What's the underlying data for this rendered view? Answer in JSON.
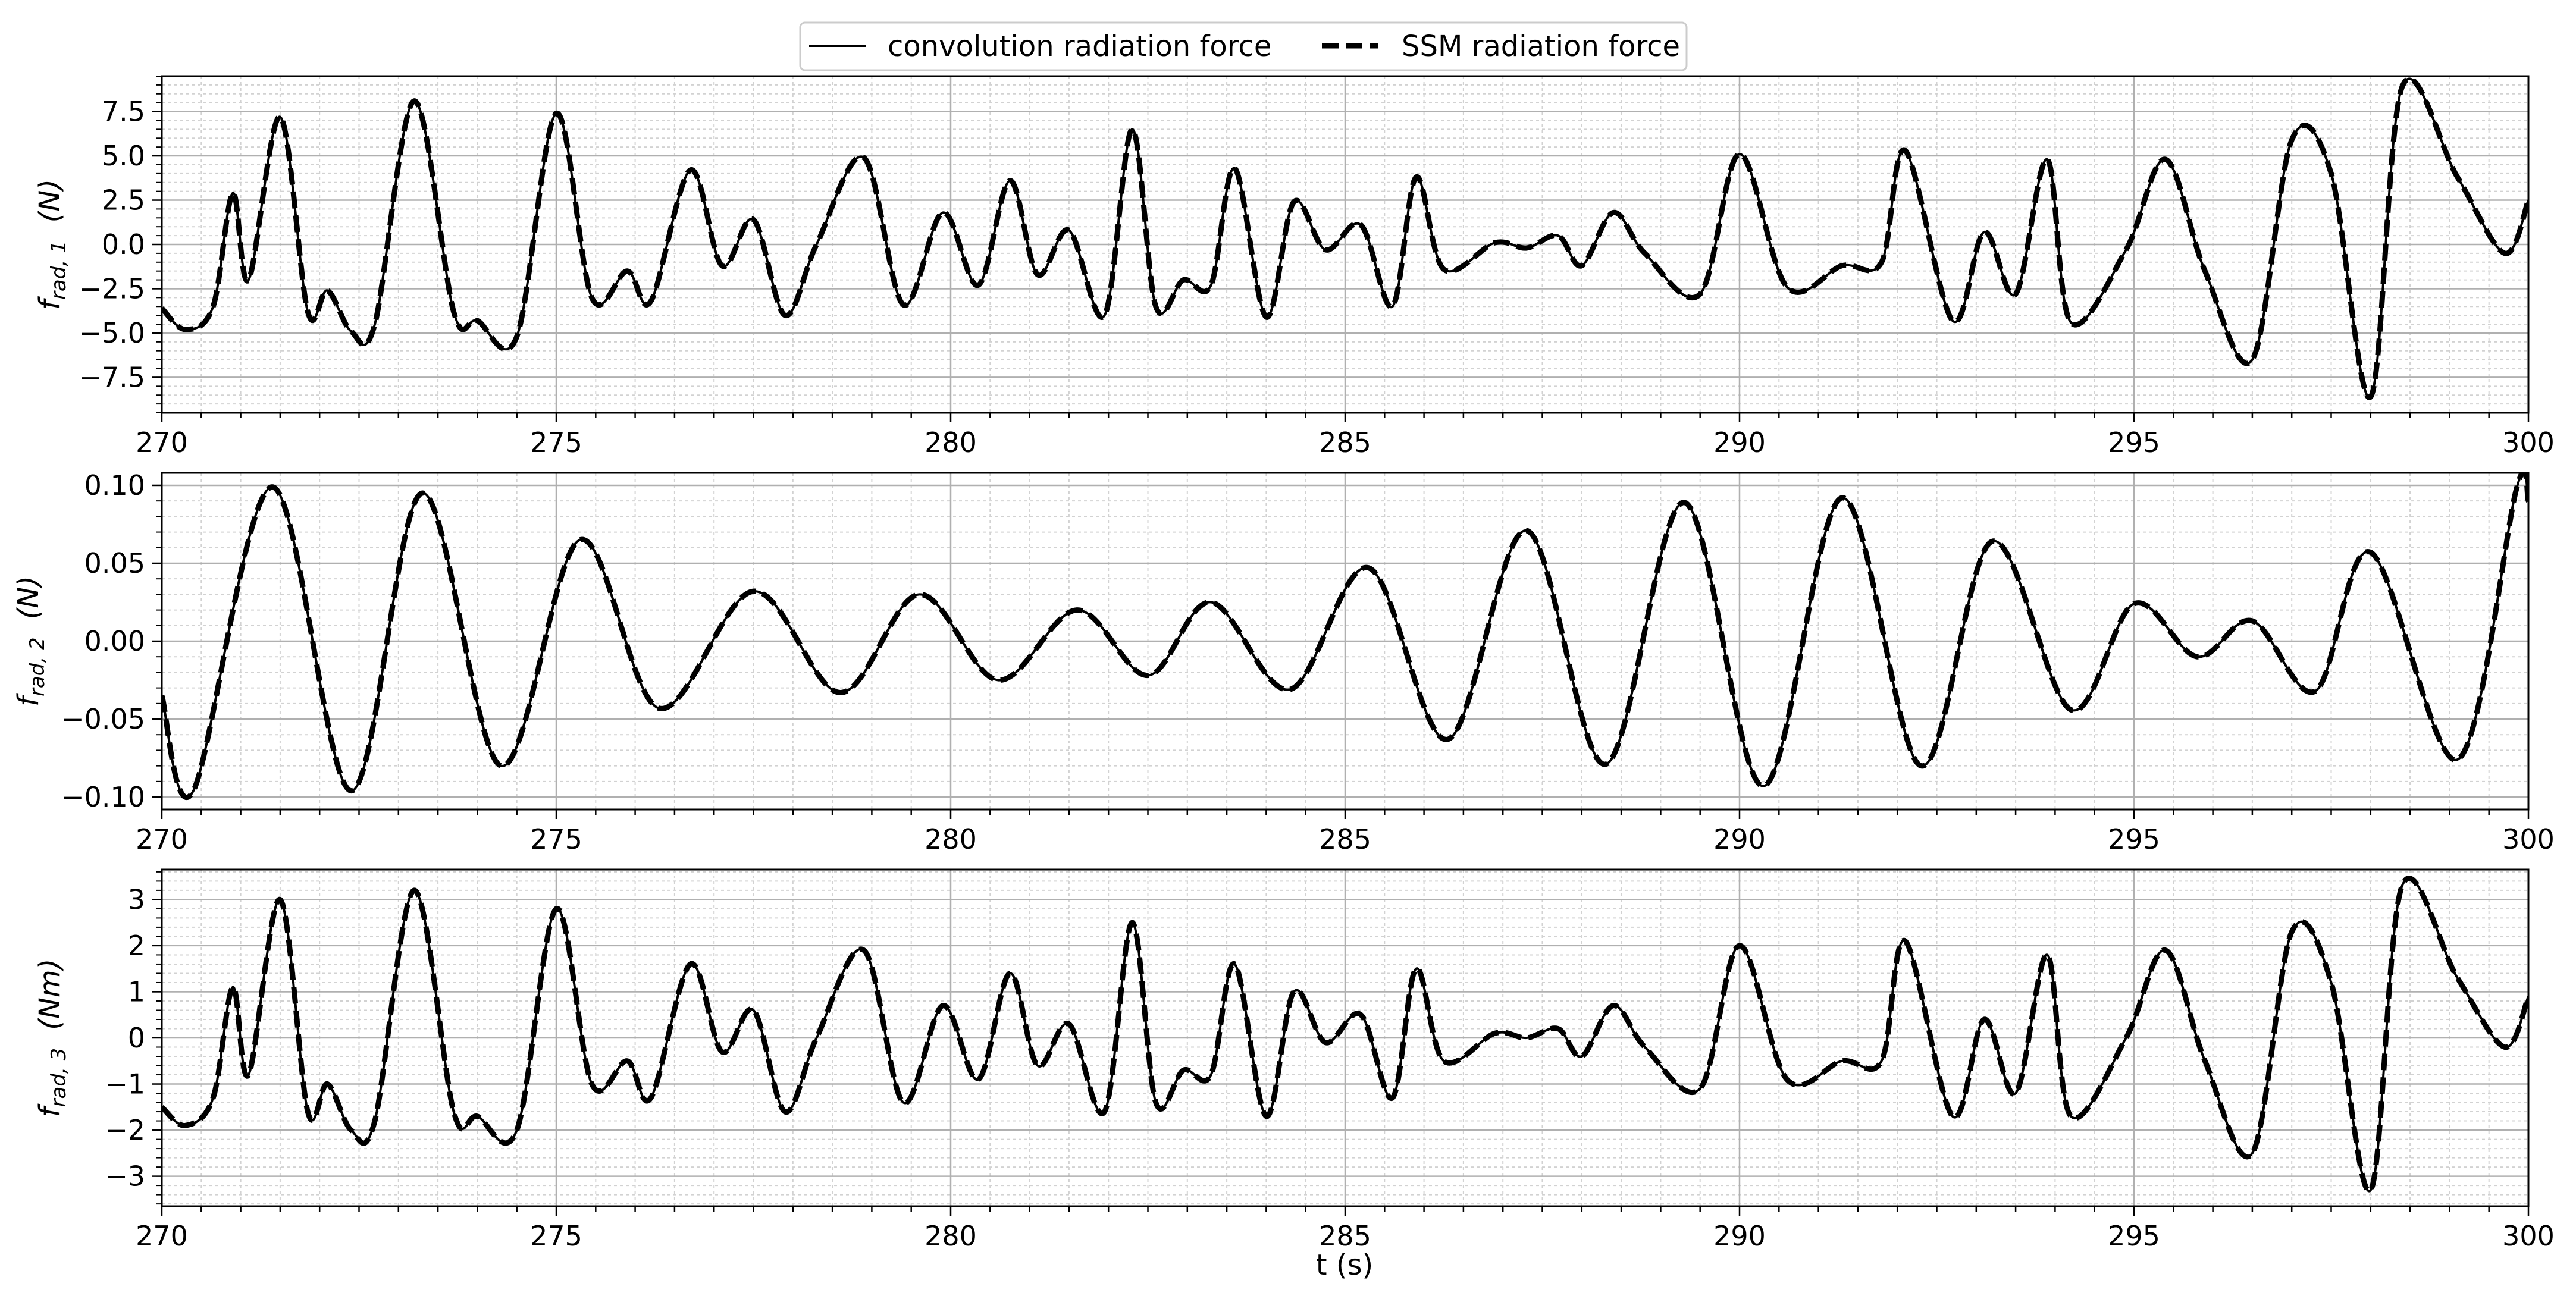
{
  "legend": {
    "entries": [
      {
        "label": "convolution radiation force",
        "style": "solid"
      },
      {
        "label": "SSM radiation force",
        "style": "dashed"
      }
    ],
    "placement": "top-center"
  },
  "chart_data": [
    {
      "type": "line",
      "title": "",
      "xlabel": "",
      "ylabel": {
        "symbol": "f",
        "subscript": "rad, 1",
        "unit": "(N)"
      },
      "xlim": [
        270,
        300
      ],
      "ylim": [
        -9.5,
        9.5
      ],
      "xticks": [
        270,
        275,
        280,
        285,
        290,
        295,
        300
      ],
      "xticklabels": [
        "270",
        "275",
        "280",
        "285",
        "290",
        "295",
        "300"
      ],
      "yticks": [
        -7.5,
        -5.0,
        -2.5,
        0.0,
        2.5,
        5.0,
        7.5
      ],
      "yticklabels": [
        "−7.5",
        "−5.0",
        "−2.5",
        "0.0",
        "2.5",
        "5.0",
        "7.5"
      ],
      "grid": true,
      "x": [
        270,
        270.3,
        270.65,
        270.9,
        271.1,
        271.5,
        271.85,
        272.1,
        272.4,
        272.7,
        273.2,
        273.7,
        274.0,
        274.5,
        275.0,
        275.45,
        275.9,
        276.2,
        276.7,
        277.1,
        277.5,
        277.9,
        278.3,
        278.9,
        279.4,
        279.9,
        280.35,
        280.75,
        281.1,
        281.5,
        281.95,
        282.3,
        282.6,
        282.95,
        283.3,
        283.6,
        284.0,
        284.35,
        284.75,
        285.2,
        285.6,
        285.9,
        286.25,
        286.9,
        287.3,
        287.7,
        288.0,
        288.4,
        288.8,
        289.5,
        290.0,
        290.6,
        291.3,
        291.8,
        292.1,
        292.7,
        293.1,
        293.5,
        293.9,
        294.2,
        294.9,
        295.4,
        295.9,
        296.5,
        297.0,
        297.5,
        298.0,
        298.4,
        299.1,
        299.7,
        300.0
      ],
      "series": [
        {
          "name": "convolution radiation force",
          "values": [
            -3.6,
            -4.8,
            -3.5,
            2.9,
            -2.0,
            7.2,
            -3.8,
            -2.6,
            -4.9,
            -4.5,
            8.1,
            -3.8,
            -4.3,
            -5.2,
            7.4,
            -3.0,
            -1.5,
            -3.2,
            4.2,
            -1.2,
            1.4,
            -4.0,
            0.0,
            4.9,
            -3.4,
            1.8,
            -2.3,
            3.6,
            -1.7,
            0.8,
            -4.0,
            6.5,
            -3.5,
            -2.0,
            -2.3,
            4.3,
            -4.1,
            2.4,
            -0.3,
            1.1,
            -3.5,
            3.8,
            -1.4,
            0.1,
            -0.2,
            0.5,
            -1.2,
            1.8,
            -0.5,
            -2.8,
            5.1,
            -2.4,
            -1.2,
            -1.0,
            5.3,
            -4.3,
            0.7,
            -2.8,
            4.8,
            -4.4,
            -0.3,
            4.8,
            -1.5,
            -6.5,
            5.9,
            4.0,
            -8.6,
            8.9,
            3.8,
            -0.5,
            2.5
          ]
        },
        {
          "name": "SSM radiation force",
          "values": [
            -3.6,
            -4.8,
            -3.5,
            2.9,
            -2.0,
            7.2,
            -3.8,
            -2.6,
            -4.9,
            -4.5,
            8.1,
            -3.8,
            -4.3,
            -5.2,
            7.4,
            -3.0,
            -1.5,
            -3.2,
            4.2,
            -1.2,
            1.4,
            -4.0,
            0.0,
            4.9,
            -3.4,
            1.8,
            -2.3,
            3.6,
            -1.7,
            0.8,
            -4.0,
            6.5,
            -3.5,
            -2.0,
            -2.3,
            4.3,
            -4.1,
            2.4,
            -0.3,
            1.1,
            -3.5,
            3.8,
            -1.4,
            0.1,
            -0.2,
            0.5,
            -1.2,
            1.8,
            -0.5,
            -2.8,
            5.1,
            -2.4,
            -1.2,
            -1.0,
            5.3,
            -4.3,
            0.7,
            -2.8,
            4.8,
            -4.4,
            -0.3,
            4.8,
            -1.5,
            -6.5,
            5.9,
            4.0,
            -8.6,
            8.9,
            3.8,
            -0.5,
            2.5
          ]
        }
      ]
    },
    {
      "type": "line",
      "title": "",
      "xlabel": "",
      "ylabel": {
        "symbol": "f",
        "subscript": "rad, 2",
        "unit": "(N)"
      },
      "xlim": [
        270,
        300
      ],
      "ylim": [
        -0.108,
        0.108
      ],
      "xticks": [
        270,
        275,
        280,
        285,
        290,
        295,
        300
      ],
      "xticklabels": [
        "270",
        "275",
        "280",
        "285",
        "290",
        "295",
        "300"
      ],
      "yticks": [
        -0.1,
        -0.05,
        0.0,
        0.05,
        0.1
      ],
      "yticklabels": [
        "−0.10",
        "−0.05",
        "0.00",
        "0.05",
        "0.10"
      ],
      "grid": true,
      "x": [
        270,
        270.4,
        271.4,
        272.4,
        273.3,
        274.3,
        275.3,
        276.3,
        277.5,
        278.6,
        279.6,
        280.6,
        281.6,
        282.5,
        283.3,
        284.3,
        285.3,
        286.3,
        287.3,
        288.3,
        289.3,
        290.3,
        291.3,
        292.3,
        293.2,
        294.2,
        295.0,
        295.8,
        296.5,
        297.3,
        298.0,
        299.1,
        299.85,
        300.0
      ],
      "series": [
        {
          "name": "convolution radiation force",
          "values": [
            -0.035,
            -0.096,
            0.099,
            -0.096,
            0.095,
            -0.08,
            0.065,
            -0.043,
            0.032,
            -0.033,
            0.03,
            -0.025,
            0.02,
            -0.022,
            0.025,
            -0.031,
            0.047,
            -0.063,
            0.071,
            -0.079,
            0.089,
            -0.093,
            0.092,
            -0.08,
            0.064,
            -0.044,
            0.024,
            -0.01,
            0.013,
            -0.032,
            0.057,
            -0.076,
            0.098,
            0.09
          ]
        },
        {
          "name": "SSM radiation force",
          "values": [
            -0.035,
            -0.096,
            0.099,
            -0.096,
            0.095,
            -0.08,
            0.065,
            -0.043,
            0.032,
            -0.033,
            0.03,
            -0.025,
            0.02,
            -0.022,
            0.025,
            -0.031,
            0.047,
            -0.063,
            0.071,
            -0.079,
            0.089,
            -0.093,
            0.092,
            -0.08,
            0.064,
            -0.044,
            0.024,
            -0.01,
            0.013,
            -0.032,
            0.057,
            -0.076,
            0.098,
            0.09
          ]
        }
      ]
    },
    {
      "type": "line",
      "title": "",
      "xlabel": "t (s)",
      "ylabel": {
        "symbol": "f",
        "subscript": "rad, 3",
        "unit": "(Nm)"
      },
      "xlim": [
        270,
        300
      ],
      "ylim": [
        -3.65,
        3.65
      ],
      "xticks": [
        270,
        275,
        280,
        285,
        290,
        295,
        300
      ],
      "xticklabels": [
        "270",
        "275",
        "280",
        "285",
        "290",
        "295",
        "300"
      ],
      "yticks": [
        -3,
        -2,
        -1,
        0,
        1,
        2,
        3
      ],
      "yticklabels": [
        "−3",
        "−2",
        "−1",
        "0",
        "1",
        "2",
        "3"
      ],
      "grid": true,
      "x": [
        270,
        270.3,
        270.65,
        270.9,
        271.1,
        271.5,
        271.85,
        272.1,
        272.4,
        272.7,
        273.2,
        273.7,
        274.0,
        274.5,
        275.0,
        275.45,
        275.9,
        276.2,
        276.7,
        277.1,
        277.5,
        277.9,
        278.3,
        278.9,
        279.4,
        279.9,
        280.35,
        280.75,
        281.1,
        281.5,
        281.95,
        282.3,
        282.6,
        282.95,
        283.3,
        283.6,
        284.0,
        284.35,
        284.75,
        285.2,
        285.6,
        285.9,
        286.25,
        286.9,
        287.3,
        287.7,
        288.0,
        288.4,
        288.8,
        289.5,
        290.0,
        290.6,
        291.3,
        291.8,
        292.1,
        292.7,
        293.1,
        293.5,
        293.9,
        294.2,
        294.9,
        295.4,
        295.9,
        296.5,
        297.0,
        297.5,
        298.0,
        298.4,
        299.1,
        299.7,
        300.0
      ],
      "series": [
        {
          "name": "convolution radiation force",
          "values": [
            -1.5,
            -1.9,
            -1.3,
            1.1,
            -0.8,
            3.0,
            -1.6,
            -1.0,
            -2.0,
            -1.8,
            3.2,
            -1.6,
            -1.7,
            -2.0,
            2.8,
            -1.0,
            -0.5,
            -1.3,
            1.6,
            -0.3,
            0.6,
            -1.6,
            0.0,
            1.9,
            -1.4,
            0.7,
            -0.9,
            1.4,
            -0.6,
            0.3,
            -1.6,
            2.5,
            -1.4,
            -0.7,
            -0.8,
            1.6,
            -1.7,
            1.0,
            -0.1,
            0.5,
            -1.3,
            1.5,
            -0.5,
            0.1,
            0.0,
            0.2,
            -0.4,
            0.7,
            -0.2,
            -1.1,
            2.0,
            -0.9,
            -0.5,
            -0.5,
            2.1,
            -1.7,
            0.4,
            -1.2,
            1.8,
            -1.7,
            0.0,
            1.9,
            -0.5,
            -2.5,
            2.3,
            1.2,
            -3.3,
            3.3,
            1.3,
            -0.2,
            0.9
          ]
        },
        {
          "name": "SSM radiation force",
          "values": [
            -1.5,
            -1.9,
            -1.3,
            1.1,
            -0.8,
            3.0,
            -1.6,
            -1.0,
            -2.0,
            -1.8,
            3.2,
            -1.6,
            -1.7,
            -2.0,
            2.8,
            -1.0,
            -0.5,
            -1.3,
            1.6,
            -0.3,
            0.6,
            -1.6,
            0.0,
            1.9,
            -1.4,
            0.7,
            -0.9,
            1.4,
            -0.6,
            0.3,
            -1.6,
            2.5,
            -1.4,
            -0.7,
            -0.8,
            1.6,
            -1.7,
            1.0,
            -0.1,
            0.5,
            -1.3,
            1.5,
            -0.5,
            0.1,
            0.0,
            0.2,
            -0.4,
            0.7,
            -0.2,
            -1.1,
            2.0,
            -0.9,
            -0.5,
            -0.5,
            2.1,
            -1.7,
            0.4,
            -1.2,
            1.8,
            -1.7,
            0.0,
            1.9,
            -0.5,
            -2.5,
            2.3,
            1.2,
            -3.3,
            3.3,
            1.3,
            -0.2,
            0.9
          ]
        }
      ]
    }
  ]
}
